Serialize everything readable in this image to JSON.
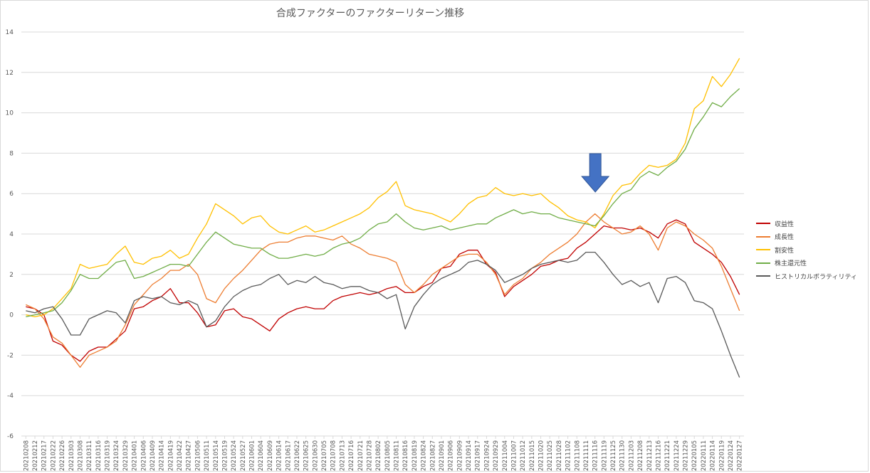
{
  "chart_data": {
    "type": "line",
    "title": "合成ファクターのファクターリターン推移",
    "xlabel": "",
    "ylabel": "",
    "ylim": [
      -6,
      14
    ],
    "yticks": [
      -6,
      -4,
      -2,
      0,
      2,
      4,
      6,
      8,
      10,
      12,
      14
    ],
    "grid": true,
    "legend_position": "right",
    "x_labels": [
      "20210208",
      "20210212",
      "20210217",
      "20210222",
      "20210226",
      "20210303",
      "20210308",
      "20210311",
      "20210316",
      "20210319",
      "20210324",
      "20210329",
      "20210401",
      "20210406",
      "20210409",
      "20210414",
      "20210419",
      "20210422",
      "20210427",
      "20210506",
      "20210511",
      "20210514",
      "20210519",
      "20210524",
      "20210527",
      "20210601",
      "20210604",
      "20210609",
      "20210614",
      "20210617",
      "20210622",
      "20210625",
      "20210630",
      "20210705",
      "20210708",
      "20210713",
      "20210716",
      "20210721",
      "20210728",
      "20210802",
      "20210805",
      "20210811",
      "20210816",
      "20210819",
      "20210824",
      "20210827",
      "20210901",
      "20210906",
      "20210909",
      "20210914",
      "20210917",
      "20210924",
      "20210929",
      "20211004",
      "20211007",
      "20211012",
      "20211015",
      "20211020",
      "20211025",
      "20211028",
      "20211102",
      "20211108",
      "20211111",
      "20211116",
      "20211119",
      "20211125",
      "20211130",
      "20211203",
      "20211208",
      "20211213",
      "20211216",
      "20211221",
      "20211224",
      "20211229",
      "20220105",
      "20220111",
      "20220114",
      "20220119",
      "20220124",
      "20220127"
    ],
    "series": [
      {
        "name": "収益性",
        "color": "#c00000",
        "values": [
          0.4,
          0.3,
          0.0,
          -1.3,
          -1.5,
          -2.0,
          -2.3,
          -1.8,
          -1.6,
          -1.6,
          -1.2,
          -0.8,
          0.3,
          0.4,
          0.7,
          0.9,
          1.3,
          0.6,
          0.6,
          0.1,
          -0.6,
          -0.5,
          0.2,
          0.3,
          -0.1,
          -0.2,
          -0.5,
          -0.8,
          -0.2,
          0.1,
          0.3,
          0.4,
          0.3,
          0.3,
          0.7,
          0.9,
          1.0,
          1.1,
          1.0,
          1.1,
          1.3,
          1.4,
          1.1,
          1.1,
          1.4,
          1.6,
          2.3,
          2.4,
          3.0,
          3.2,
          3.2,
          2.5,
          2.1,
          0.9,
          1.4,
          1.7,
          2.0,
          2.4,
          2.5,
          2.7,
          2.8,
          3.3,
          3.6,
          4.0,
          4.4,
          4.3,
          4.3,
          4.2,
          4.3,
          4.1,
          3.8,
          4.5,
          4.7,
          4.5,
          3.6,
          3.3,
          3.0,
          2.6,
          1.9,
          1.0
        ]
      },
      {
        "name": "成長性",
        "color": "#ed7d31",
        "values": [
          0.5,
          0.3,
          -0.2,
          -1.1,
          -1.4,
          -2.0,
          -2.6,
          -2.0,
          -1.8,
          -1.6,
          -1.3,
          -0.5,
          0.5,
          1.0,
          1.5,
          1.8,
          2.2,
          2.2,
          2.5,
          2.0,
          0.8,
          0.6,
          1.3,
          1.8,
          2.2,
          2.7,
          3.2,
          3.5,
          3.6,
          3.6,
          3.8,
          3.9,
          3.9,
          3.8,
          3.7,
          3.9,
          3.5,
          3.3,
          3.0,
          2.9,
          2.8,
          2.6,
          1.5,
          1.1,
          1.5,
          2.0,
          2.3,
          2.6,
          2.9,
          3.0,
          3.0,
          2.6,
          2.0,
          1.0,
          1.5,
          1.8,
          2.3,
          2.6,
          3.0,
          3.3,
          3.6,
          4.0,
          4.6,
          5.0,
          4.6,
          4.3,
          4.0,
          4.1,
          4.4,
          4.0,
          3.2,
          4.3,
          4.6,
          4.4,
          4.0,
          3.7,
          3.3,
          2.4,
          1.3,
          0.2
        ]
      },
      {
        "name": "割安性",
        "color": "#ffc000",
        "values": [
          0.0,
          -0.1,
          0.0,
          0.3,
          0.8,
          1.3,
          2.5,
          2.3,
          2.4,
          2.5,
          3.0,
          3.4,
          2.6,
          2.5,
          2.8,
          2.9,
          3.2,
          2.8,
          3.0,
          3.8,
          4.5,
          5.5,
          5.2,
          4.9,
          4.5,
          4.8,
          4.9,
          4.4,
          4.1,
          4.0,
          4.2,
          4.4,
          4.1,
          4.2,
          4.4,
          4.6,
          4.8,
          5.0,
          5.3,
          5.8,
          6.1,
          6.6,
          5.4,
          5.2,
          5.1,
          5.0,
          4.8,
          4.6,
          5.0,
          5.5,
          5.8,
          5.9,
          6.3,
          6.0,
          5.9,
          6.0,
          5.9,
          6.0,
          5.6,
          5.3,
          4.9,
          4.7,
          4.6,
          4.3,
          5.0,
          5.9,
          6.4,
          6.5,
          7.0,
          7.4,
          7.3,
          7.4,
          7.7,
          8.5,
          10.2,
          10.6,
          11.8,
          11.3,
          11.9,
          12.7
        ]
      },
      {
        "name": "株主還元性",
        "color": "#70ad47",
        "values": [
          -0.1,
          0.0,
          0.1,
          0.2,
          0.6,
          1.2,
          2.0,
          1.8,
          1.8,
          2.2,
          2.6,
          2.7,
          1.8,
          1.9,
          2.1,
          2.3,
          2.5,
          2.5,
          2.4,
          3.0,
          3.6,
          4.1,
          3.8,
          3.5,
          3.4,
          3.3,
          3.3,
          3.0,
          2.8,
          2.8,
          2.9,
          3.0,
          2.9,
          3.0,
          3.3,
          3.5,
          3.6,
          3.8,
          4.2,
          4.5,
          4.6,
          5.0,
          4.6,
          4.3,
          4.2,
          4.3,
          4.4,
          4.2,
          4.3,
          4.4,
          4.5,
          4.5,
          4.8,
          5.0,
          5.2,
          5.0,
          5.1,
          5.0,
          5.0,
          4.8,
          4.7,
          4.6,
          4.5,
          4.4,
          4.9,
          5.5,
          6.0,
          6.2,
          6.8,
          7.1,
          6.9,
          7.3,
          7.6,
          8.2,
          9.2,
          9.8,
          10.5,
          10.3,
          10.8,
          11.2
        ]
      },
      {
        "name": "ヒストリカルボラティリティ",
        "color": "#595959",
        "values": [
          0.2,
          0.1,
          0.3,
          0.4,
          -0.2,
          -1.0,
          -1.0,
          -0.2,
          0.0,
          0.2,
          0.1,
          -0.4,
          0.7,
          0.9,
          0.8,
          0.9,
          0.6,
          0.5,
          0.7,
          0.5,
          -0.6,
          -0.3,
          0.4,
          0.9,
          1.2,
          1.4,
          1.5,
          1.8,
          2.0,
          1.5,
          1.7,
          1.6,
          1.9,
          1.6,
          1.5,
          1.3,
          1.4,
          1.4,
          1.2,
          1.1,
          0.8,
          1.0,
          -0.7,
          0.4,
          1.0,
          1.5,
          1.8,
          2.0,
          2.2,
          2.6,
          2.7,
          2.5,
          2.2,
          1.6,
          1.8,
          2.0,
          2.3,
          2.5,
          2.6,
          2.7,
          2.6,
          2.7,
          3.1,
          3.1,
          2.6,
          2.0,
          1.5,
          1.7,
          1.4,
          1.6,
          0.6,
          1.8,
          1.9,
          1.6,
          0.7,
          0.6,
          0.3,
          -0.8,
          -2.0,
          -3.1
        ]
      }
    ]
  },
  "annotation": {
    "type": "arrow-down",
    "color": "#4472c4",
    "at_x_label": "20211116"
  }
}
